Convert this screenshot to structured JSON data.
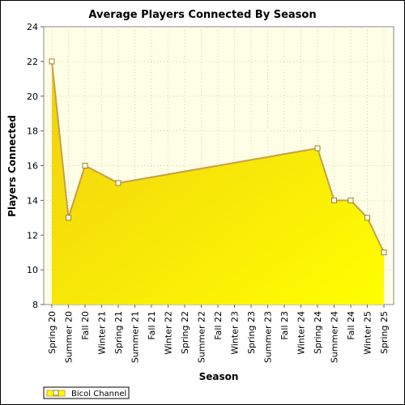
{
  "chart_data": {
    "type": "area",
    "title": "Average Players Connected By Season",
    "xlabel": "Season",
    "ylabel": "Players Connected",
    "ylim": [
      8,
      24
    ],
    "yticks": [
      8,
      10,
      12,
      14,
      16,
      18,
      20,
      22,
      24
    ],
    "grid": true,
    "legend_position": "bottom-left",
    "categories": [
      "Spring 20",
      "Summer 20",
      "Fall 20",
      "Winter 21",
      "Spring 21",
      "Summer 21",
      "Fall 21",
      "Winter 22",
      "Spring 22",
      "Summer 22",
      "Fall 22",
      "Winter 23",
      "Spring 23",
      "Summer 23",
      "Fall 23",
      "Winter 24",
      "Spring 24",
      "Summer 24",
      "Fall 24",
      "Winter 25",
      "Spring 25"
    ],
    "series": [
      {
        "name": "Bicol Channel",
        "values": [
          22,
          13,
          16,
          null,
          15,
          null,
          null,
          null,
          null,
          null,
          null,
          null,
          null,
          null,
          null,
          null,
          17,
          14,
          14,
          13,
          11
        ]
      }
    ],
    "colors": {
      "plot_background": "#ffffe8",
      "area_top": "#f0cf10",
      "area_bottom": "#ffff00",
      "line": "#c8a040",
      "marker_fill": "#ffffff",
      "marker_stroke": "#a08020",
      "grid": "#cfcfa0"
    }
  }
}
